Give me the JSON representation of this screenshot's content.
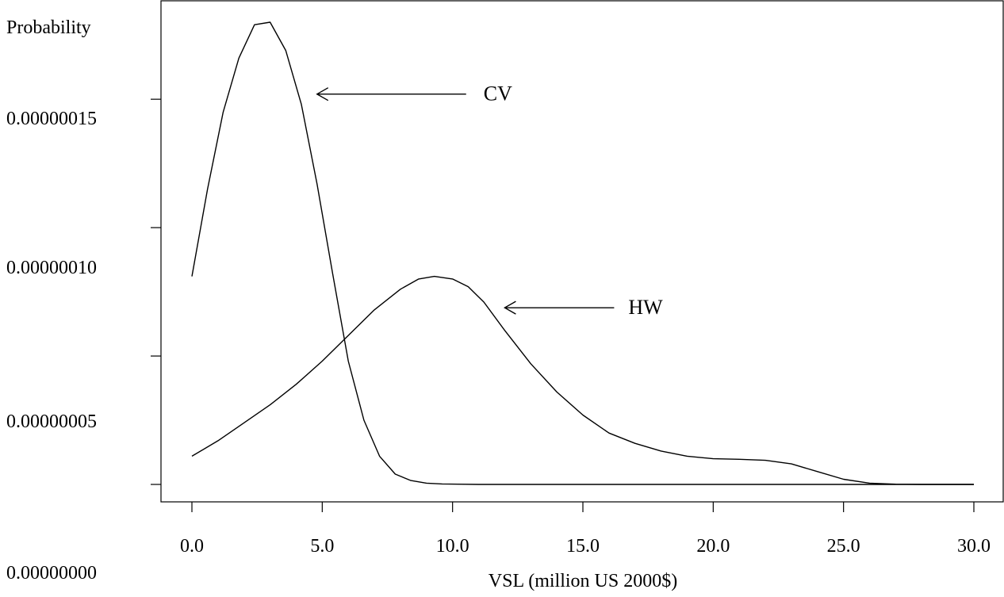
{
  "chart_data": {
    "type": "line",
    "title": "",
    "ylabel": "Probability",
    "xlabel": "VSL (million US 2000$)",
    "xlim": [
      0.0,
      30.0
    ],
    "ylim": [
      0.0,
      1.8e-07
    ],
    "x_ticks": [
      0,
      5,
      10,
      15,
      20,
      25,
      30
    ],
    "x_tick_labels": [
      "0.0",
      "5.0",
      "10.0",
      "15.0",
      "20.0",
      "25.0",
      "30.0"
    ],
    "y_tick_labels": [
      {
        "value": 1.5e-07,
        "label": "0.00000015"
      },
      {
        "value": 1e-07,
        "label": "0.00000010"
      },
      {
        "value": 5e-08,
        "label": "0.00000005"
      },
      {
        "value": 0.0,
        "label": "0.00000000"
      }
    ],
    "y_minor_ticks": [
      0.0,
      5e-08,
      1e-07,
      1.5e-07
    ],
    "grid": false,
    "series": [
      {
        "name": "CV",
        "x": [
          0.0,
          0.6,
          1.2,
          1.8,
          2.4,
          3.0,
          3.6,
          4.2,
          4.8,
          5.4,
          6.0,
          6.6,
          7.2,
          7.8,
          8.4,
          9.0,
          9.6,
          10.2,
          11.0,
          12.0,
          15.0,
          20.0,
          25.0,
          30.0
        ],
        "y": [
          8.1e-08,
          1.15e-07,
          1.45e-07,
          1.66e-07,
          1.79e-07,
          1.8e-07,
          1.69e-07,
          1.48e-07,
          1.17e-07,
          8.2e-08,
          4.8e-08,
          2.5e-08,
          1.1e-08,
          4e-09,
          1.5e-09,
          5e-10,
          2e-10,
          1e-10,
          0.0,
          0.0,
          0.0,
          0.0,
          0.0,
          0.0
        ]
      },
      {
        "name": "HW",
        "x": [
          0.0,
          1.0,
          2.0,
          3.0,
          4.0,
          5.0,
          6.0,
          7.0,
          8.0,
          8.7,
          9.3,
          10.0,
          10.6,
          11.2,
          12.0,
          13.0,
          14.0,
          15.0,
          16.0,
          17.0,
          18.0,
          19.0,
          20.0,
          21.0,
          22.0,
          23.0,
          24.0,
          25.0,
          26.0,
          27.0,
          28.0,
          29.0,
          30.0
        ],
        "y": [
          1.1e-08,
          1.7e-08,
          2.4e-08,
          3.1e-08,
          3.9e-08,
          4.8e-08,
          5.8e-08,
          6.8e-08,
          7.6e-08,
          8e-08,
          8.1e-08,
          8e-08,
          7.7e-08,
          7.1e-08,
          6e-08,
          4.7e-08,
          3.6e-08,
          2.7e-08,
          2e-08,
          1.6e-08,
          1.3e-08,
          1.1e-08,
          1e-08,
          9.8e-09,
          9.4e-09,
          8e-09,
          5e-09,
          2e-09,
          5e-10,
          1e-10,
          0.0,
          0.0,
          0.0
        ]
      }
    ],
    "annotations": [
      {
        "text": "CV",
        "arrow_to": [
          4.8,
          1.52e-07
        ]
      },
      {
        "text": "HW",
        "arrow_to": [
          12.0,
          6.88e-08
        ]
      }
    ]
  }
}
